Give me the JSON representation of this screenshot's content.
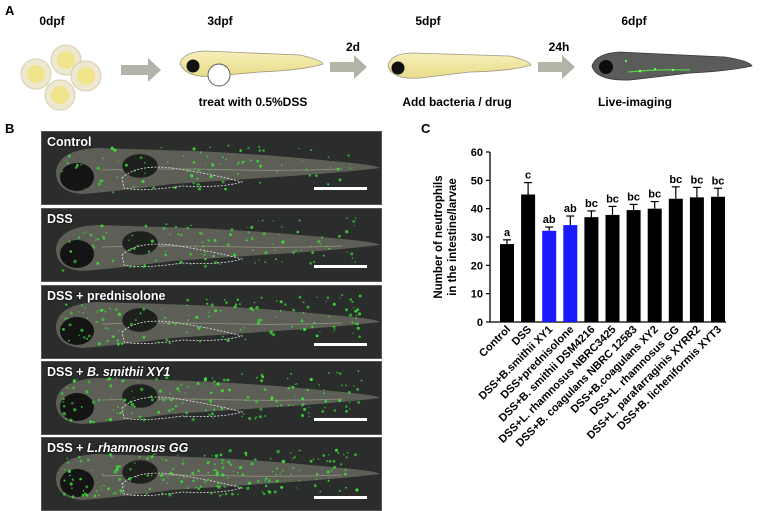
{
  "panel_a": {
    "label": "A",
    "stages": [
      "0dpf",
      "3dpf",
      "5dpf",
      "6dpf"
    ],
    "intervals": [
      "2d",
      "24h"
    ],
    "captions": [
      "treat with 0.5%DSS",
      "Add bacteria / drug",
      "Live-imaging"
    ]
  },
  "panel_b": {
    "label": "B",
    "images": [
      {
        "prefix": "Control",
        "italic": ""
      },
      {
        "prefix": "DSS",
        "italic": ""
      },
      {
        "prefix": "DSS + prednisolone",
        "italic": ""
      },
      {
        "prefix": "DSS + ",
        "italic": "B. smithii XY1"
      },
      {
        "prefix": "DSS + ",
        "italic": "L.rhamnosus GG"
      }
    ]
  },
  "panel_c": {
    "label": "C",
    "chart_data": {
      "type": "bar",
      "ylabel": "Number of neutrophils\nin the intestine/larvae",
      "ylim": [
        0,
        60
      ],
      "yticks": [
        0,
        10,
        20,
        30,
        40,
        50,
        60
      ],
      "categories": [
        "Control",
        "DSS",
        "DSS+B.smithii XY1",
        "DSS+prednisolone",
        "DSS+B. smithii DSM4216",
        "DSS+L. rhamnosus NBRC3425",
        "DSS+B. coagulans NBRC 12583",
        "DSS+B.coagulans XY2",
        "DSS+L. rhamnosus GG",
        "DSS+L. parafarraginis XYRR2",
        "DSS+B. licheniformis XYT3"
      ],
      "values": [
        27.5,
        45,
        32.2,
        34.2,
        37,
        37.8,
        39.5,
        40,
        43.5,
        44,
        44.2
      ],
      "errors": [
        1.5,
        4.2,
        1.3,
        3.2,
        2.2,
        3,
        2,
        2.5,
        4.2,
        3.5,
        3
      ],
      "sig_labels": [
        "a",
        "c",
        "ab",
        "ab",
        "bc",
        "bc",
        "bc",
        "bc",
        "bc",
        "bc",
        "bc"
      ],
      "colors": [
        "#000000",
        "#000000",
        "#1a1aff",
        "#1a1aff",
        "#000000",
        "#000000",
        "#000000",
        "#000000",
        "#000000",
        "#000000",
        "#000000"
      ]
    }
  }
}
